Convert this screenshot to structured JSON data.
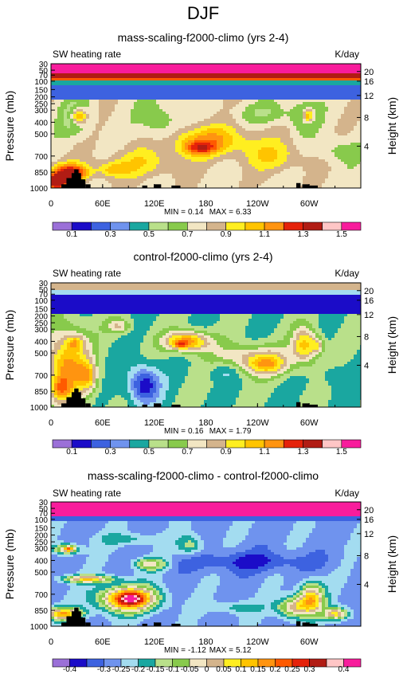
{
  "figure_title": "DJF",
  "palette": [
    "#9b70d8",
    "#1b0cc8",
    "#3d62e0",
    "#6f93ee",
    "#a3dcf0",
    "#1aa7a0",
    "#b9e08a",
    "#88ca4c",
    "#f2e6c3",
    "#d4b48c",
    "#ffee20",
    "#ffc400",
    "#ff9410",
    "#ff5a00",
    "#e5220a",
    "#b11c14",
    "#ffc6c6",
    "#f81c9c"
  ],
  "chart_data": [
    {
      "type": "contour",
      "title": "mass-scaling-f2000-climo (yrs 2-4)",
      "left_label": "SW heating rate",
      "units": "K/day",
      "ylabel": "Pressure (mb)",
      "ylabel_right": "Height (km)",
      "x_ticks": [
        "0",
        "60E",
        "120E",
        "180",
        "120W",
        "60W"
      ],
      "y_ticks": [
        "30",
        "50",
        "70",
        "100",
        "150",
        "200",
        "250",
        "300",
        "400",
        "500",
        "700",
        "850",
        "1000"
      ],
      "y_ticks_right": [
        "20",
        "16",
        "12",
        "8",
        "4"
      ],
      "min": "0.14",
      "max": "6.33",
      "colorbar_labels": [
        "0.1",
        "0.3",
        "0.5",
        "0.7",
        "0.9",
        "1.1",
        "1.3",
        "1.5"
      ],
      "colorbar_levels": [
        "0.1",
        "0.2",
        "0.3",
        "0.4",
        "0.5",
        "0.6",
        "0.7",
        "0.8",
        "0.9",
        "1",
        "1.1",
        "1.2",
        "1.3",
        "1.4",
        "1.5"
      ]
    },
    {
      "type": "contour",
      "title": "control-f2000-climo (yrs 2-4)",
      "left_label": "SW heating rate",
      "units": "K/day",
      "ylabel": "Pressure (mb)",
      "ylabel_right": "Height (km)",
      "x_ticks": [
        "0",
        "60E",
        "120E",
        "180",
        "120W",
        "60W"
      ],
      "y_ticks": [
        "30",
        "50",
        "70",
        "100",
        "150",
        "200",
        "250",
        "300",
        "400",
        "500",
        "700",
        "850",
        "1000"
      ],
      "y_ticks_right": [
        "20",
        "16",
        "12",
        "8",
        "4"
      ],
      "min": "0.16",
      "max": "1.79",
      "colorbar_labels": [
        "0.1",
        "0.3",
        "0.5",
        "0.7",
        "0.9",
        "1.1",
        "1.3",
        "1.5"
      ],
      "colorbar_levels": [
        "0.1",
        "0.2",
        "0.3",
        "0.4",
        "0.5",
        "0.6",
        "0.7",
        "0.8",
        "0.9",
        "1",
        "1.1",
        "1.2",
        "1.3",
        "1.4",
        "1.5"
      ]
    },
    {
      "type": "contour",
      "title": "mass-scaling-f2000-climo - control-f2000-climo",
      "left_label": "SW heating rate",
      "units": "K/day",
      "ylabel": "Pressure (mb)",
      "ylabel_right": "Height (km)",
      "x_ticks": [
        "0",
        "60E",
        "120E",
        "180",
        "120W",
        "60W"
      ],
      "y_ticks": [
        "30",
        "50",
        "70",
        "100",
        "150",
        "200",
        "250",
        "300",
        "400",
        "500",
        "700",
        "850",
        "1000"
      ],
      "y_ticks_right": [
        "20",
        "16",
        "12",
        "8",
        "4"
      ],
      "min": "-1.12",
      "max": "5.12",
      "colorbar_labels": [
        "-0.4",
        "-0.3",
        "-0.25",
        "-0.2",
        "-0.15",
        "-0.1",
        "-0.05",
        "0",
        "0.05",
        "0.1",
        "0.15",
        "0.2",
        "0.25",
        "0.3",
        "0.4"
      ],
      "colorbar_levels": [
        "-0.4",
        "-0.35",
        "-0.3",
        "-0.25",
        "-0.2",
        "-0.15",
        "-0.1",
        "-0.05",
        "0",
        "0.05",
        "0.1",
        "0.15",
        "0.2",
        "0.25",
        "0.3",
        "0.35",
        "0.4"
      ]
    }
  ]
}
